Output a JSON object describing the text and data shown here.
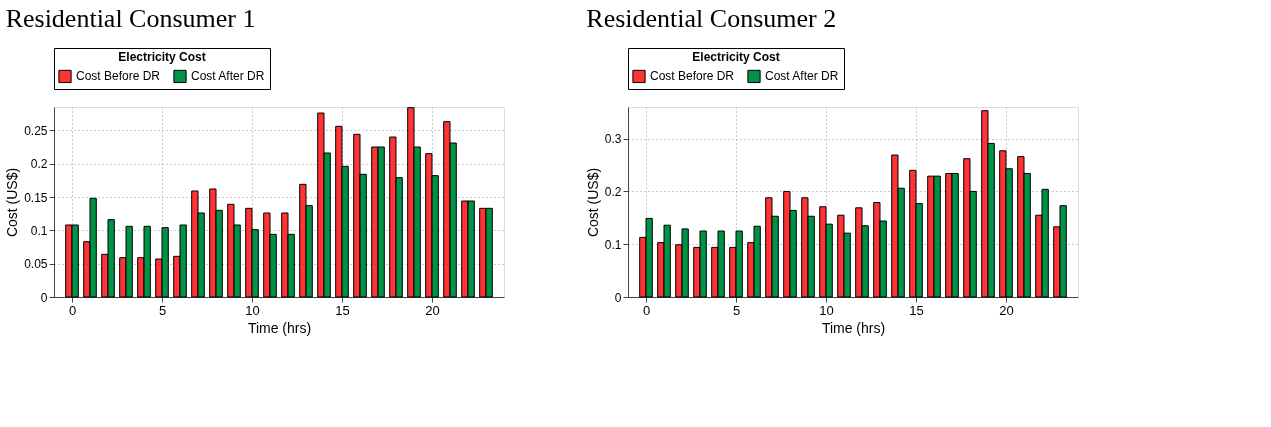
{
  "chart_data": [
    {
      "type": "bar",
      "title": "Residential Consumer 1",
      "xlabel": "Time (hrs)",
      "ylabel": "Cost (US$)",
      "legend_title": "Electricity Cost",
      "legend": "top",
      "grid": true,
      "x": [
        0,
        1,
        2,
        3,
        4,
        5,
        6,
        7,
        8,
        9,
        10,
        11,
        12,
        13,
        14,
        15,
        16,
        17,
        18,
        19,
        20,
        21,
        22,
        23
      ],
      "xlim": [
        -1,
        24
      ],
      "xticks": [
        0,
        5,
        10,
        15,
        20
      ],
      "ylim": [
        0,
        0.285
      ],
      "yticks": [
        0,
        0.05,
        0.1,
        0.15,
        0.2,
        0.25
      ],
      "series": [
        {
          "name": "Cost Before DR",
          "color": "#ff3333",
          "values": [
            0.108,
            0.083,
            0.064,
            0.059,
            0.059,
            0.057,
            0.061,
            0.159,
            0.162,
            0.139,
            0.133,
            0.126,
            0.126,
            0.169,
            0.276,
            0.256,
            0.244,
            0.225,
            0.24,
            0.284,
            0.215,
            0.263,
            0.144,
            0.133
          ]
        },
        {
          "name": "Cost After DR",
          "color": "#009245",
          "values": [
            0.108,
            0.148,
            0.116,
            0.106,
            0.106,
            0.104,
            0.108,
            0.126,
            0.13,
            0.108,
            0.101,
            0.094,
            0.094,
            0.137,
            0.216,
            0.196,
            0.184,
            0.225,
            0.179,
            0.225,
            0.182,
            0.231,
            0.144,
            0.133
          ]
        }
      ]
    },
    {
      "type": "bar",
      "title": "Residential Consumer 2",
      "xlabel": "Time (hrs)",
      "ylabel": "Cost (US$)",
      "legend_title": "Electricity Cost",
      "legend": "top",
      "grid": true,
      "x": [
        0,
        1,
        2,
        3,
        4,
        5,
        6,
        7,
        8,
        9,
        10,
        11,
        12,
        13,
        14,
        15,
        16,
        17,
        18,
        19,
        20,
        21,
        22,
        23
      ],
      "xlim": [
        -1,
        24
      ],
      "xticks": [
        0,
        5,
        10,
        15,
        20
      ],
      "ylim": [
        0,
        0.36
      ],
      "yticks": [
        0,
        0.1,
        0.2,
        0.3
      ],
      "series": [
        {
          "name": "Cost Before DR",
          "color": "#ff3333",
          "values": [
            0.113,
            0.103,
            0.099,
            0.094,
            0.094,
            0.094,
            0.103,
            0.188,
            0.2,
            0.188,
            0.171,
            0.155,
            0.169,
            0.179,
            0.269,
            0.24,
            0.229,
            0.234,
            0.262,
            0.353,
            0.277,
            0.266,
            0.155,
            0.133
          ]
        },
        {
          "name": "Cost After DR",
          "color": "#009245",
          "values": [
            0.149,
            0.136,
            0.129,
            0.125,
            0.125,
            0.125,
            0.134,
            0.153,
            0.164,
            0.153,
            0.138,
            0.121,
            0.135,
            0.144,
            0.206,
            0.177,
            0.229,
            0.234,
            0.2,
            0.291,
            0.243,
            0.234,
            0.204,
            0.173
          ]
        }
      ]
    }
  ]
}
